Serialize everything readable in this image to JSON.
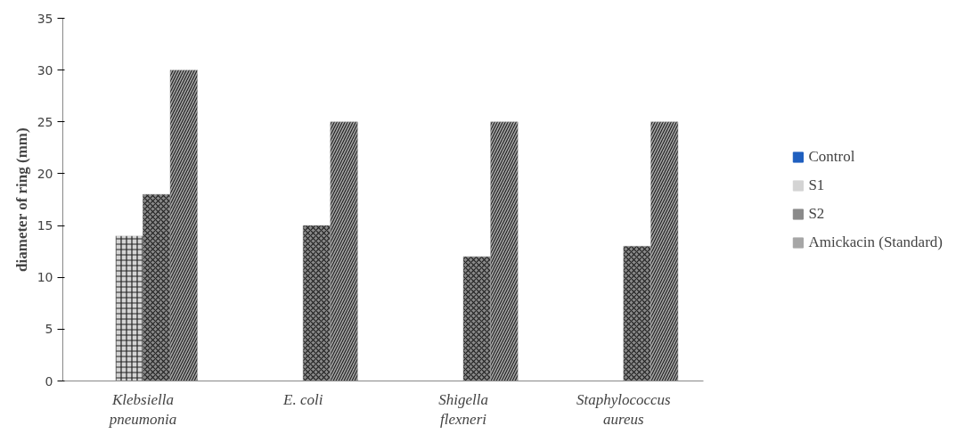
{
  "chart_data": {
    "type": "bar",
    "ylabel": "diameter of ring (mm)",
    "categories": [
      "Klebsiella\npneumonia",
      "E. coli",
      "Shigella\nflexneri",
      "Staphylococcus\naureus"
    ],
    "series": [
      {
        "name": "Control",
        "color": "#1f5fbf",
        "values": [
          0,
          0,
          0,
          0
        ]
      },
      {
        "name": "S1",
        "color": "#d4d4d4",
        "values": [
          14,
          0,
          0,
          0
        ]
      },
      {
        "name": "S2",
        "color": "#8a8a8a",
        "values": [
          18,
          15,
          12,
          13
        ]
      },
      {
        "name": "Amickacin (Standard)",
        "color": "#a6a6a6",
        "values": [
          30,
          25,
          25,
          25
        ]
      }
    ],
    "ylim": [
      0,
      35
    ],
    "yticks": [
      0,
      5,
      10,
      15,
      20,
      25,
      30,
      35
    ],
    "grid": false,
    "legend": "right"
  }
}
